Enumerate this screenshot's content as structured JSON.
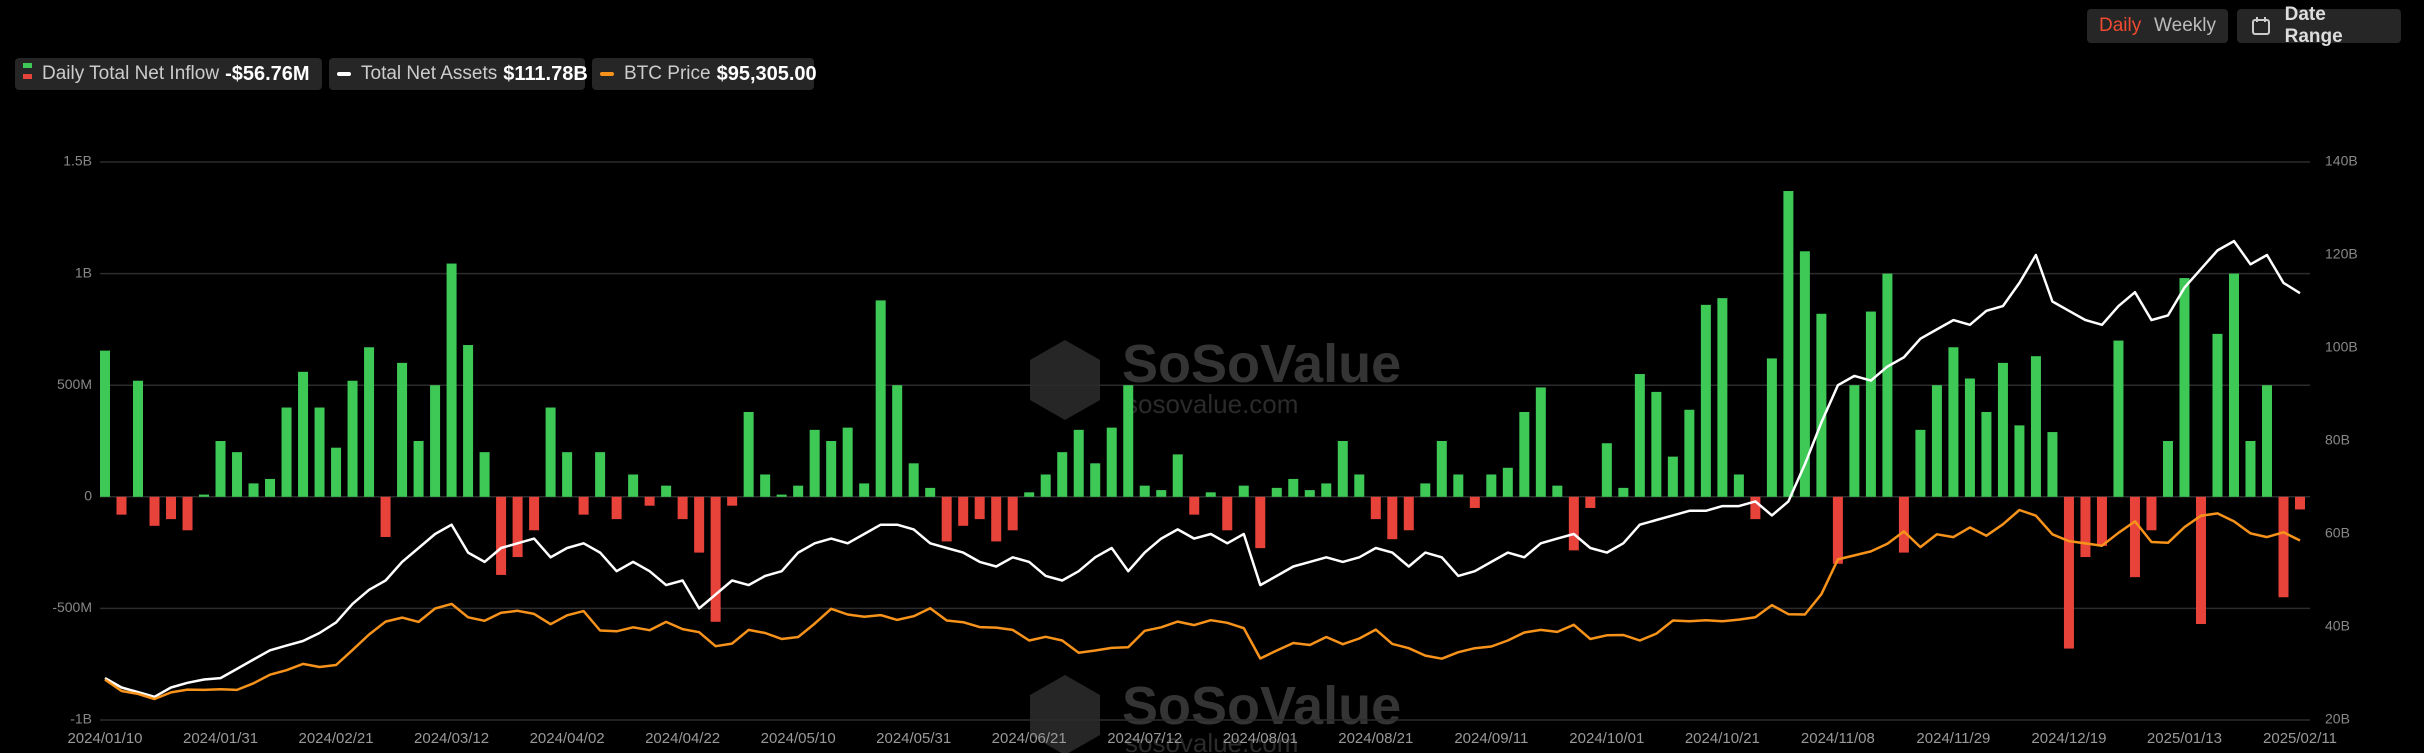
{
  "toolbar": {
    "daily": "Daily",
    "weekly": "Weekly",
    "date_range": "Date Range"
  },
  "watermark": {
    "brand": "SoSoValue",
    "url": "sosovalue.com"
  },
  "chart_data": {
    "type": "bar",
    "categories": [
      "2024/01/10",
      null,
      null,
      null,
      null,
      null,
      null,
      "2024/01/31",
      null,
      null,
      null,
      null,
      null,
      null,
      "2024/02/21",
      null,
      null,
      null,
      null,
      null,
      null,
      "2024/03/12",
      null,
      null,
      null,
      null,
      null,
      null,
      "2024/04/02",
      null,
      null,
      null,
      null,
      null,
      null,
      "2024/04/22",
      null,
      null,
      null,
      null,
      null,
      null,
      "2024/05/10",
      null,
      null,
      null,
      null,
      null,
      null,
      "2024/05/31",
      null,
      null,
      null,
      null,
      null,
      null,
      "2024/06/21",
      null,
      null,
      null,
      null,
      null,
      null,
      "2024/07/12",
      null,
      null,
      null,
      null,
      null,
      null,
      "2024/08/01",
      null,
      null,
      null,
      null,
      null,
      null,
      "2024/08/21",
      null,
      null,
      null,
      null,
      null,
      null,
      "2024/09/11",
      null,
      null,
      null,
      null,
      null,
      null,
      "2024/10/01",
      null,
      null,
      null,
      null,
      null,
      null,
      "2024/10/21",
      null,
      null,
      null,
      null,
      null,
      null,
      "2024/11/08",
      null,
      null,
      null,
      null,
      null,
      null,
      "2024/11/29",
      null,
      null,
      null,
      null,
      null,
      null,
      "2024/12/19",
      null,
      null,
      null,
      null,
      null,
      null,
      "2025/01/13",
      null,
      null,
      null,
      null,
      null,
      null,
      "2025/02/11"
    ],
    "series": [
      {
        "name": "Daily Total Net Inflow",
        "legend_value": "-$56.76M",
        "type": "bar",
        "color": "#3ec957",
        "negative_color": "#e8433a",
        "values": [
          655,
          -80,
          520,
          -130,
          -100,
          -150,
          10,
          250,
          200,
          60,
          80,
          400,
          560,
          400,
          220,
          520,
          670,
          -180,
          600,
          250,
          500,
          1045,
          680,
          200,
          -350,
          -270,
          -150,
          400,
          200,
          -80,
          200,
          -100,
          100,
          -40,
          50,
          -100,
          -250,
          -560,
          -40,
          380,
          100,
          10,
          50,
          300,
          250,
          310,
          60,
          880,
          500,
          150,
          40,
          -200,
          -130,
          -100,
          -200,
          -150,
          20,
          100,
          200,
          300,
          150,
          310,
          500,
          50,
          30,
          190,
          -80,
          20,
          -150,
          50,
          -230,
          40,
          80,
          30,
          60,
          250,
          100,
          -100,
          -190,
          -150,
          60,
          250,
          100,
          -50,
          100,
          130,
          380,
          490,
          50,
          -240,
          -50,
          240,
          40,
          550,
          470,
          180,
          390,
          860,
          890,
          100,
          -100,
          620,
          1370,
          1100,
          820,
          -300,
          500,
          830,
          1000,
          -250,
          300,
          500,
          670,
          530,
          380,
          600,
          320,
          630,
          290,
          -680,
          -270,
          -220,
          700,
          -360,
          -150,
          250,
          980,
          -570,
          730,
          1000,
          250,
          500,
          -450,
          -56.76
        ]
      },
      {
        "name": "Total Net Assets",
        "legend_value": "$111.78B",
        "type": "line",
        "axis": "y2",
        "color": "#ffffff",
        "values": [
          29,
          27,
          26,
          25,
          27,
          28,
          28.7,
          29,
          31,
          33,
          35,
          36,
          37,
          38.7,
          41,
          45,
          48,
          50,
          54,
          57,
          60,
          62,
          56,
          54,
          57,
          58,
          59,
          55,
          57,
          58,
          56,
          52,
          54,
          52,
          49,
          50,
          44,
          47,
          50,
          49,
          51,
          52,
          56,
          58,
          59,
          58,
          60,
          62,
          62,
          61,
          58,
          57,
          56,
          54,
          53,
          55,
          54,
          51,
          50,
          52,
          55,
          57,
          52,
          56,
          59,
          61,
          59,
          60,
          58,
          60,
          49,
          51,
          53,
          54,
          55,
          54,
          55,
          57,
          56,
          53,
          56,
          55,
          51,
          52,
          54,
          56,
          55,
          58,
          59,
          60,
          57,
          56,
          58,
          62,
          63,
          64,
          65,
          65,
          66,
          66,
          67,
          64,
          67,
          75,
          84,
          92,
          94,
          93,
          96,
          98,
          102,
          104,
          106,
          105,
          108,
          109,
          114,
          120,
          110,
          108,
          106,
          105,
          109,
          112,
          106,
          107,
          113,
          117,
          121,
          123,
          118,
          120,
          114,
          111.78
        ]
      },
      {
        "name": "BTC Price",
        "legend_value": "$95,305.00",
        "type": "line",
        "color": "#f7931a",
        "values": [
          46600,
          42600,
          41600,
          39800,
          42100,
          43100,
          43000,
          43200,
          43000,
          45300,
          48300,
          49900,
          52100,
          51000,
          51700,
          57000,
          62400,
          66900,
          68300,
          66800,
          71500,
          73100,
          68400,
          67200,
          70000,
          70700,
          69600,
          66000,
          69100,
          70600,
          63800,
          63500,
          64900,
          63900,
          66800,
          64300,
          63200,
          58300,
          59200,
          64000,
          62900,
          60800,
          61500,
          66200,
          71400,
          69400,
          68600,
          69200,
          67500,
          68800,
          71600,
          67300,
          66700,
          65000,
          64800,
          64000,
          60300,
          61600,
          60300,
          56000,
          56800,
          57700,
          57900,
          63700,
          64900,
          66900,
          65700,
          67400,
          66500,
          64600,
          54000,
          56800,
          59400,
          58700,
          61500,
          59000,
          61000,
          64100,
          59100,
          57600,
          55000,
          53900,
          56200,
          57600,
          58200,
          60300,
          63100,
          64000,
          63300,
          65800,
          60800,
          62100,
          62200,
          60300,
          62700,
          67300,
          67000,
          67400,
          67000,
          67600,
          68400,
          72700,
          69500,
          69400,
          76500,
          88700,
          90100,
          91500,
          94200,
          98500,
          93000,
          97500,
          96500,
          99900,
          97000,
          101000,
          106000,
          104000,
          97500,
          95100,
          94300,
          93500,
          98000,
          102000,
          94800,
          94500,
          100000,
          104000,
          104800,
          102000,
          97800,
          96500,
          98200,
          95305
        ]
      }
    ],
    "ylim": [
      -1000,
      1500
    ],
    "yticks": [
      {
        "value": -1000,
        "label": "-1B"
      },
      {
        "value": -500,
        "label": "-500M"
      },
      0,
      {
        "value": 500,
        "label": "500M"
      },
      {
        "value": 1000,
        "label": "1B"
      },
      {
        "value": 1500,
        "label": "1.5B"
      }
    ],
    "y2lim": [
      20,
      140
    ],
    "y2ticks": [
      {
        "value": 20,
        "label": "20B"
      },
      {
        "value": 40,
        "label": "40B"
      },
      {
        "value": 60,
        "label": "60B"
      },
      {
        "value": 80,
        "label": "80B"
      },
      {
        "value": 100,
        "label": "100B"
      },
      {
        "value": 120,
        "label": "120B"
      },
      {
        "value": 140,
        "label": "140B"
      }
    ],
    "grid": true
  }
}
